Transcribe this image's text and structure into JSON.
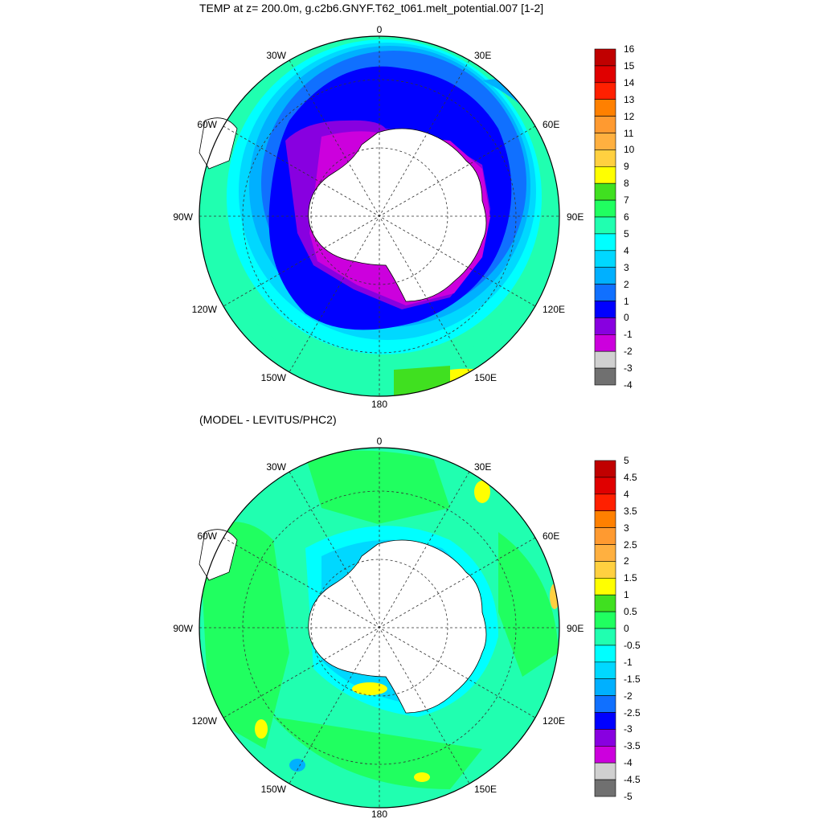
{
  "panels": [
    {
      "id": "top",
      "title": "TEMP at z= 200.0m, g.c2b6.GNYF.T62_t061.melt_potential.007 [1-2]",
      "lon_labels": {
        "l0": "0",
        "l30e": "30E",
        "l60e": "60E",
        "l90e": "90E",
        "l120e": "120E",
        "l150e": "150E",
        "l180": "180",
        "l150w": "150W",
        "l120w": "120W",
        "l90w": "90W",
        "l60w": "60W",
        "l30w": "30W"
      },
      "colorbar": {
        "labels": [
          "16",
          "15",
          "14",
          "13",
          "12",
          "11",
          "10",
          "9",
          "8",
          "7",
          "6",
          "5",
          "4",
          "3",
          "2",
          "1",
          "0",
          "-1",
          "-2",
          "-3",
          "-4"
        ],
        "colors": [
          "#c00000",
          "#e00000",
          "#ff2000",
          "#ff8000",
          "#ff9a30",
          "#ffb040",
          "#ffd040",
          "#ffff00",
          "#40e020",
          "#20ff60",
          "#20ffb0",
          "#00ffff",
          "#00d8ff",
          "#00b0ff",
          "#1070ff",
          "#0000ff",
          "#8800e0",
          "#cc00dd",
          "#d0d0d0",
          "#707070"
        ]
      }
    },
    {
      "id": "bottom",
      "title": "(MODEL - LEVITUS/PHC2)",
      "lon_labels": {
        "l0": "0",
        "l30e": "30E",
        "l60e": "60E",
        "l90e": "90E",
        "l120e": "120E",
        "l150e": "150E",
        "l180": "180",
        "l150w": "150W",
        "l120w": "120W",
        "l90w": "90W",
        "l60w": "60W",
        "l30w": "30W"
      },
      "colorbar": {
        "labels": [
          "5",
          "4.5",
          "4",
          "3.5",
          "3",
          "2.5",
          "2",
          "1.5",
          "1",
          "0.5",
          "0",
          "-0.5",
          "-1",
          "-1.5",
          "-2",
          "-2.5",
          "-3",
          "-3.5",
          "-4",
          "-4.5",
          "-5"
        ],
        "colors": [
          "#c00000",
          "#e00000",
          "#ff2000",
          "#ff8000",
          "#ff9a30",
          "#ffb040",
          "#ffd040",
          "#ffff00",
          "#40e020",
          "#20ff60",
          "#20ffb0",
          "#00ffff",
          "#00d8ff",
          "#00b0ff",
          "#1070ff",
          "#0000ff",
          "#8800e0",
          "#cc00dd",
          "#d0d0d0",
          "#707070"
        ]
      }
    }
  ]
}
